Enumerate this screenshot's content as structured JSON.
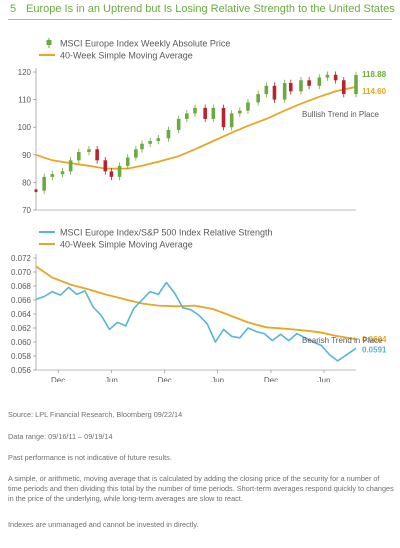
{
  "header": {
    "number": "5",
    "title": "Europe Is in an Uptrend but Is Losing Relative Strength to the United States"
  },
  "colors": {
    "accent": "#6aab3f",
    "price_up": "#6aab3f",
    "price_down": "#b8232f",
    "ma": "#e8a623",
    "relative": "#58b4d9"
  },
  "chart_data": [
    {
      "type": "line",
      "title": "",
      "legend": [
        "MSCI Europe Index Weekly Absolute Price",
        "40-Week Simple Moving Average"
      ],
      "x_ticks": [
        {
          "month": "Dec",
          "year": "'11"
        },
        {
          "month": "Jun",
          "year": "'12"
        },
        {
          "month": "Dec",
          "year": "'12"
        },
        {
          "month": "Jun",
          "year": "'13"
        },
        {
          "month": "Dec",
          "year": "'13"
        },
        {
          "month": "Jun",
          "year": "'14"
        }
      ],
      "x_tick_dates": [
        "2011-12-01",
        "2012-06-01",
        "2012-12-01",
        "2013-06-01",
        "2013-12-01",
        "2014-06-01"
      ],
      "x_range": [
        "2011-09-16",
        "2014-09-19"
      ],
      "ylim": [
        70,
        120
      ],
      "y_ticks": [
        70,
        80,
        90,
        100,
        110,
        120
      ],
      "grid": false,
      "annotation": "Bullish Trend in Place",
      "end_labels": {
        "price": "118.88",
        "ma": "114.60"
      },
      "series": [
        {
          "name": "MSCI Europe Index Weekly Absolute Price",
          "dates": [
            "2011-09-16",
            "2011-10-14",
            "2011-11-11",
            "2011-12-16",
            "2012-01-13",
            "2012-02-10",
            "2012-03-16",
            "2012-04-13",
            "2012-05-11",
            "2012-06-01",
            "2012-06-29",
            "2012-07-27",
            "2012-08-24",
            "2012-09-14",
            "2012-10-12",
            "2012-11-09",
            "2012-12-14",
            "2013-01-18",
            "2013-02-15",
            "2013-03-15",
            "2013-04-19",
            "2013-05-17",
            "2013-06-21",
            "2013-07-19",
            "2013-08-16",
            "2013-09-13",
            "2013-10-18",
            "2013-11-15",
            "2013-12-13",
            "2014-01-17",
            "2014-02-07",
            "2014-03-14",
            "2014-04-11",
            "2014-05-16",
            "2014-06-13",
            "2014-07-11",
            "2014-08-08",
            "2014-09-19"
          ],
          "values": [
            77,
            82,
            83,
            84,
            88,
            91,
            92,
            88,
            84,
            82,
            86,
            89,
            92,
            94,
            95,
            96,
            99,
            103,
            105,
            107,
            103,
            107,
            100,
            105,
            106,
            109,
            112,
            115,
            110,
            116,
            113,
            117,
            115,
            118,
            119,
            117,
            112,
            118.88
          ]
        },
        {
          "name": "40-Week Simple Moving Average",
          "dates": [
            "2011-09-16",
            "2011-11-11",
            "2012-01-13",
            "2012-03-16",
            "2012-05-11",
            "2012-07-27",
            "2012-09-14",
            "2012-11-09",
            "2013-01-18",
            "2013-03-15",
            "2013-05-17",
            "2013-07-19",
            "2013-09-13",
            "2013-11-15",
            "2014-01-17",
            "2014-03-14",
            "2014-05-16",
            "2014-07-11",
            "2014-09-19"
          ],
          "values": [
            90,
            88,
            87,
            86,
            85,
            85,
            86,
            87.5,
            89.5,
            92,
            95,
            98,
            100.5,
            103,
            106,
            108.5,
            111,
            113,
            114.6
          ]
        }
      ]
    },
    {
      "type": "line",
      "title": "",
      "legend": [
        "MSCI Europe Index/S&P 500 Index Relative Strength",
        "40-Week Simple Moving Average"
      ],
      "x_ticks": [
        {
          "month": "Dec",
          "year": "'11"
        },
        {
          "month": "Jun",
          "year": "'12"
        },
        {
          "month": "Dec",
          "year": "'12"
        },
        {
          "month": "Jun",
          "year": "'13"
        },
        {
          "month": "Dec",
          "year": "'13"
        },
        {
          "month": "Jun",
          "year": "'14"
        }
      ],
      "x_tick_dates": [
        "2011-12-01",
        "2012-06-01",
        "2012-12-01",
        "2013-06-01",
        "2013-12-01",
        "2014-06-01"
      ],
      "x_range": [
        "2011-09-16",
        "2014-09-19"
      ],
      "ylim": [
        0.056,
        0.072
      ],
      "y_ticks": [
        "0.056",
        "0.058",
        "0.060",
        "0.062",
        "0.064",
        "0.066",
        "0.068",
        "0.070",
        "0.072"
      ],
      "grid": false,
      "annotation": "Bearish Trend in Place",
      "end_labels": {
        "relative": "0.0591",
        "ma": "0.0604"
      },
      "series": [
        {
          "name": "MSCI Europe Index/S&P 500 Index Relative Strength",
          "dates": [
            "2011-09-16",
            "2011-10-14",
            "2011-11-11",
            "2011-12-09",
            "2012-01-06",
            "2012-02-03",
            "2012-03-02",
            "2012-03-30",
            "2012-04-27",
            "2012-05-25",
            "2012-06-22",
            "2012-07-20",
            "2012-08-17",
            "2012-09-14",
            "2012-10-12",
            "2012-11-09",
            "2012-12-07",
            "2013-01-04",
            "2013-02-01",
            "2013-03-01",
            "2013-03-29",
            "2013-04-26",
            "2013-05-24",
            "2013-06-21",
            "2013-07-19",
            "2013-08-16",
            "2013-09-13",
            "2013-10-11",
            "2013-11-08",
            "2013-12-06",
            "2014-01-03",
            "2014-01-31",
            "2014-02-28",
            "2014-03-28",
            "2014-04-25",
            "2014-05-23",
            "2014-06-20",
            "2014-07-18",
            "2014-08-15",
            "2014-09-19"
          ],
          "values": [
            0.0661,
            0.0665,
            0.0672,
            0.0667,
            0.0678,
            0.0668,
            0.0673,
            0.065,
            0.0638,
            0.0618,
            0.0628,
            0.0623,
            0.0648,
            0.066,
            0.0672,
            0.0668,
            0.0685,
            0.067,
            0.0649,
            0.0646,
            0.0638,
            0.0626,
            0.06,
            0.0618,
            0.0608,
            0.0606,
            0.062,
            0.0615,
            0.0612,
            0.0602,
            0.0611,
            0.0602,
            0.0612,
            0.0606,
            0.06,
            0.0595,
            0.0582,
            0.0573,
            0.0581,
            0.0591
          ]
        },
        {
          "name": "40-Week Simple Moving Average",
          "dates": [
            "2011-09-16",
            "2011-11-11",
            "2012-01-13",
            "2012-03-16",
            "2012-05-11",
            "2012-07-27",
            "2012-09-14",
            "2012-11-09",
            "2013-01-18",
            "2013-03-15",
            "2013-05-17",
            "2013-07-19",
            "2013-09-13",
            "2013-11-15",
            "2014-01-17",
            "2014-03-14",
            "2014-05-16",
            "2014-07-11",
            "2014-09-19"
          ],
          "values": [
            0.0708,
            0.0692,
            0.0682,
            0.0675,
            0.0668,
            0.066,
            0.0655,
            0.0652,
            0.0651,
            0.0652,
            0.0647,
            0.0637,
            0.0628,
            0.0621,
            0.0619,
            0.0617,
            0.0614,
            0.0609,
            0.0604
          ]
        }
      ]
    }
  ],
  "notes": [
    "Source: LPL Financial Research, Bloomberg   09/22/14",
    "Data range: 09/16/11 – 09/19/14",
    "Past performance is not indicative of future results.",
    "A simple, or arithmetic, moving average that is calculated by adding the closing price of the security for a number of time periods and then dividing this total by the number of time periods. Short-term averages respond quickly to changes in the price of the underlying, while long-term averages are slow to react.",
    "Indexes are unmanaged and cannot be invested in directly."
  ]
}
